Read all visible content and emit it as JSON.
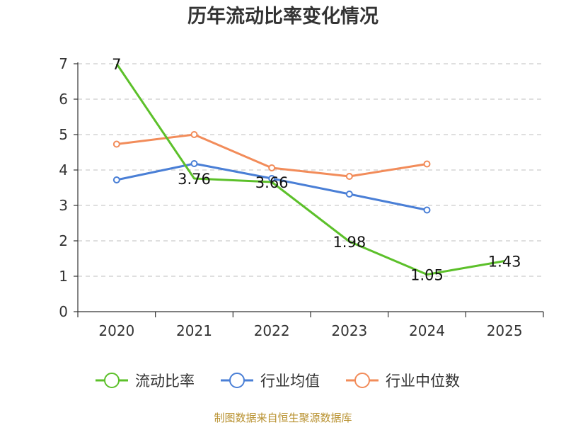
{
  "chart_data": {
    "type": "line",
    "title": "历年流动比率变化情况",
    "categories": [
      "2020",
      "2021",
      "2022",
      "2023",
      "2024",
      "2025"
    ],
    "ylim": [
      0,
      7
    ],
    "yticks": [
      0,
      1,
      2,
      3,
      4,
      5,
      6,
      7
    ],
    "grid": true,
    "legend_position": "bottom",
    "series": [
      {
        "name": "流动比率",
        "color": "#5cc02a",
        "values": [
          7,
          3.76,
          3.66,
          1.98,
          1.05,
          1.43
        ],
        "labels": [
          "7",
          "3.76",
          "3.66",
          "1.98",
          "1.05",
          "1.43"
        ]
      },
      {
        "name": "行业均值",
        "color": "#4a7fd6",
        "values": [
          3.72,
          4.18,
          3.76,
          3.32,
          2.87,
          null
        ]
      },
      {
        "name": "行业中位数",
        "color": "#f28c5a",
        "values": [
          4.73,
          5.0,
          4.06,
          3.82,
          4.17,
          null
        ]
      }
    ],
    "source": "制图数据来自恒生聚源数据库"
  }
}
